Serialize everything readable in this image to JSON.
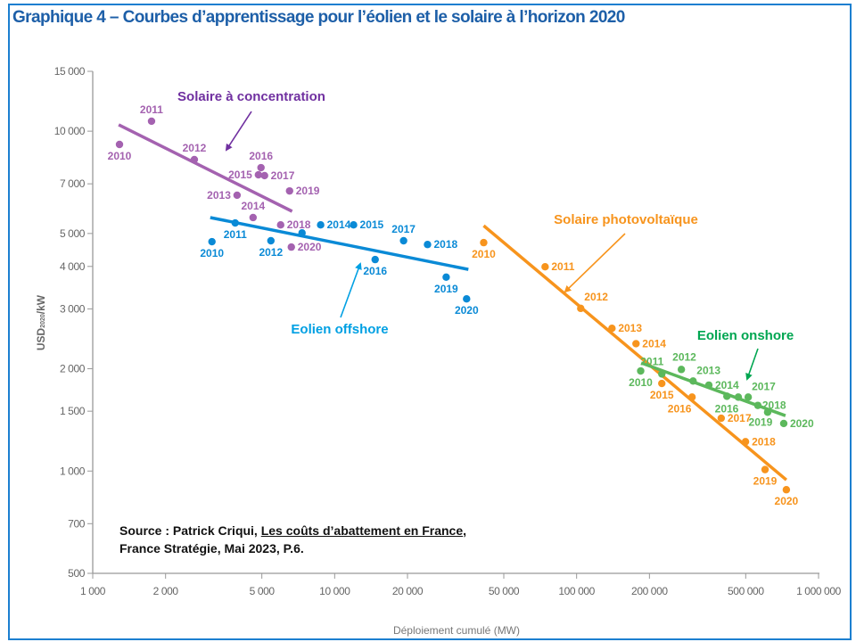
{
  "title": "Graphique 4 – Courbes d’apprentissage pour l’éolien et le solaire à l’horizon 2020",
  "source": {
    "prefix": "Source : Patrick Criqui, ",
    "work": "Les coûts d’abattement en France",
    "suffix": ",",
    "line2": "France Stratégie, Mai 2023, P.6."
  },
  "chart_data": {
    "type": "scatter",
    "xlabel": "Déploiement cumulé (MW)",
    "ylabel_main": "USD",
    "ylabel_sub": "2020",
    "ylabel_unit": "/kW",
    "xscale": "log",
    "yscale": "log",
    "xlim": [
      1000,
      1000000
    ],
    "ylim": [
      500,
      15000
    ],
    "xticks": [
      1000,
      2000,
      5000,
      10000,
      20000,
      50000,
      100000,
      200000,
      500000,
      1000000
    ],
    "xtick_labels": [
      "1 000",
      "2 000",
      "5 000",
      "10 000",
      "20 000",
      "50 000",
      "100 000",
      "200 000",
      "500 000",
      "1 000 000"
    ],
    "yticks": [
      500,
      700,
      1000,
      1500,
      2000,
      3000,
      4000,
      5000,
      7000,
      10000,
      15000
    ],
    "ytick_labels": [
      "500",
      "700",
      "1 000",
      "1 500",
      "2 000",
      "3 000",
      "4 000",
      "5 000",
      "7 000",
      "10 000",
      "15 000"
    ],
    "grid": false,
    "series": [
      {
        "name": "Solaire à concentration",
        "color": "#a462b0",
        "label_color": "#7030a0",
        "points": [
          {
            "label": "2010",
            "x": 1290,
            "y": 9140
          },
          {
            "label": "2011",
            "x": 1750,
            "y": 10700
          },
          {
            "label": "2012",
            "x": 2630,
            "y": 8250
          },
          {
            "label": "2013",
            "x": 3950,
            "y": 6480
          },
          {
            "label": "2014",
            "x": 4600,
            "y": 5570
          },
          {
            "label": "2015",
            "x": 4840,
            "y": 7440
          },
          {
            "label": "2016",
            "x": 4960,
            "y": 7810
          },
          {
            "label": "2017",
            "x": 5130,
            "y": 7400
          },
          {
            "label": "2018",
            "x": 5980,
            "y": 5300
          },
          {
            "label": "2019",
            "x": 6510,
            "y": 6670
          },
          {
            "label": "2020",
            "x": 6620,
            "y": 4560
          }
        ],
        "trend": [
          [
            1280,
            10440
          ],
          [
            6670,
            5810
          ]
        ]
      },
      {
        "name": "Eolien offshore",
        "color": "#0a8ad6",
        "label_color": "#00a0e3",
        "points": [
          {
            "label": "2010",
            "x": 3110,
            "y": 4730
          },
          {
            "label": "2011",
            "x": 3880,
            "y": 5370
          },
          {
            "label": "2012",
            "x": 5450,
            "y": 4760
          },
          {
            "label": "",
            "x": 7330,
            "y": 5020
          },
          {
            "label": "2014",
            "x": 8750,
            "y": 5300
          },
          {
            "label": "2015",
            "x": 11970,
            "y": 5300
          },
          {
            "label": "2016",
            "x": 14700,
            "y": 4190
          },
          {
            "label": "2017",
            "x": 19270,
            "y": 4760
          },
          {
            "label": "2018",
            "x": 24200,
            "y": 4640
          },
          {
            "label": "2019",
            "x": 28900,
            "y": 3720
          },
          {
            "label": "2020",
            "x": 35100,
            "y": 3210
          }
        ],
        "trend": [
          [
            3060,
            5570
          ],
          [
            35700,
            3920
          ]
        ]
      },
      {
        "name": "Solaire photovoltaïque",
        "color": "#f7941d",
        "label_color": "#f7941d",
        "points": [
          {
            "label": "2010",
            "x": 41300,
            "y": 4700
          },
          {
            "label": "2011",
            "x": 74100,
            "y": 3990
          },
          {
            "label": "2012",
            "x": 104000,
            "y": 3010
          },
          {
            "label": "2013",
            "x": 140000,
            "y": 2630
          },
          {
            "label": "2014",
            "x": 176000,
            "y": 2370
          },
          {
            "label": "2015",
            "x": 225000,
            "y": 1810
          },
          {
            "label": "2016",
            "x": 300000,
            "y": 1650
          },
          {
            "label": "2017",
            "x": 396000,
            "y": 1430
          },
          {
            "label": "2018",
            "x": 499000,
            "y": 1220
          },
          {
            "label": "2019",
            "x": 601000,
            "y": 1010
          },
          {
            "label": "2020",
            "x": 736000,
            "y": 881
          }
        ],
        "trend": [
          [
            41300,
            5270
          ],
          [
            736000,
            942
          ]
        ]
      },
      {
        "name": "Eolien onshore",
        "color": "#5cb85c",
        "label_color": "#00a651",
        "points": [
          {
            "label": "2010",
            "x": 184000,
            "y": 1970
          },
          {
            "label": "2011",
            "x": 225000,
            "y": 1930
          },
          {
            "label": "2012",
            "x": 271000,
            "y": 1990
          },
          {
            "label": "2013",
            "x": 303000,
            "y": 1840
          },
          {
            "label": "2014",
            "x": 352000,
            "y": 1790
          },
          {
            "label": "",
            "x": 418000,
            "y": 1660
          },
          {
            "label": "2016",
            "x": 466000,
            "y": 1650
          },
          {
            "label": "2017",
            "x": 512000,
            "y": 1650
          },
          {
            "label": "2018",
            "x": 561000,
            "y": 1560
          },
          {
            "label": "2019",
            "x": 616000,
            "y": 1490
          },
          {
            "label": "2020",
            "x": 718000,
            "y": 1380
          }
        ],
        "trend": [
          [
            185000,
            2080
          ],
          [
            730000,
            1455
          ]
        ]
      }
    ]
  }
}
